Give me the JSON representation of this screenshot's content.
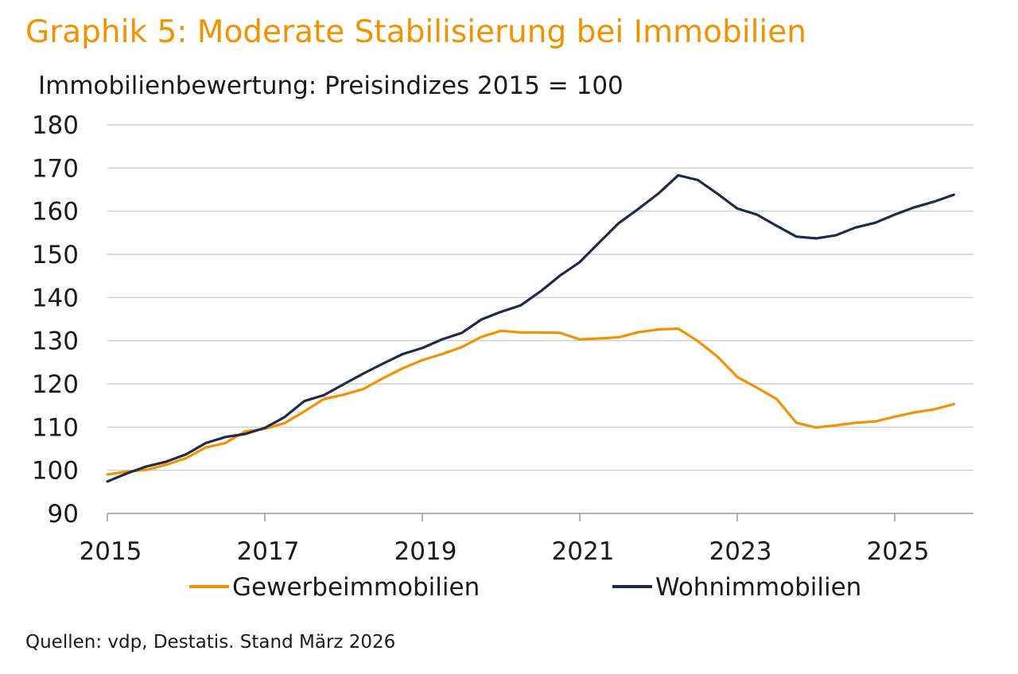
{
  "title": "Graphik 5: Moderate Stabilisierung bei Immobilien",
  "source": "Quellen: vdp, Destatis. Stand März 2026",
  "chart_data": {
    "type": "line",
    "title": "Graphik 5: Moderate Stabilisierung bei Immobilien",
    "ylabel": "Immobilienbewertung: Preisindizes 2015 = 100",
    "xlabel": "",
    "xlim": [
      2015,
      2026
    ],
    "ylim": [
      90,
      180
    ],
    "y_ticks": [
      90,
      100,
      110,
      120,
      130,
      140,
      150,
      160,
      170,
      180
    ],
    "x_ticks": [
      2015,
      2017,
      2019,
      2021,
      2023,
      2025
    ],
    "x_tick_labels": [
      "2015",
      "2017",
      "2019",
      "2021",
      "2023",
      "2025"
    ],
    "grid": "horizontal",
    "legend_position": "bottom",
    "x": [
      2015.0,
      2015.25,
      2015.5,
      2015.75,
      2016.0,
      2016.25,
      2016.5,
      2016.75,
      2017.0,
      2017.25,
      2017.5,
      2017.75,
      2018.0,
      2018.25,
      2018.5,
      2018.75,
      2019.0,
      2019.25,
      2019.5,
      2019.75,
      2020.0,
      2020.25,
      2020.5,
      2020.75,
      2021.0,
      2021.25,
      2021.5,
      2021.75,
      2022.0,
      2022.25,
      2022.5,
      2022.75,
      2023.0,
      2023.25,
      2023.5,
      2023.75,
      2024.0,
      2024.25,
      2024.5,
      2024.75,
      2025.0,
      2025.25,
      2025.5,
      2025.75
    ],
    "series": [
      {
        "name": "Gewerbeimmobilien",
        "color": "#f39200",
        "values": [
          99.0,
          99.7,
          100.1,
          101.3,
          102.8,
          105.3,
          106.3,
          109.0,
          109.6,
          110.9,
          113.6,
          116.5,
          117.5,
          118.8,
          121.3,
          123.6,
          125.5,
          126.9,
          128.5,
          130.9,
          132.3,
          131.9,
          131.9,
          131.8,
          130.3,
          130.5,
          130.8,
          132.0,
          132.6,
          132.8,
          129.9,
          126.3,
          121.6,
          119.1,
          116.5,
          111.0,
          109.9,
          110.4,
          111.0,
          111.3,
          112.4,
          113.4,
          114.1,
          115.3
        ]
      },
      {
        "name": "Wohnimmobilien",
        "color": "#1f2a4d",
        "values": [
          97.4,
          99.3,
          100.9,
          102.0,
          103.7,
          106.3,
          107.7,
          108.4,
          109.8,
          112.3,
          116.0,
          117.4,
          119.9,
          122.4,
          124.7,
          126.9,
          128.3,
          130.3,
          131.8,
          134.9,
          136.7,
          138.2,
          141.4,
          145.1,
          148.2,
          152.8,
          157.3,
          160.6,
          164.1,
          168.3,
          167.2,
          164.0,
          160.6,
          159.2,
          156.6,
          154.1,
          153.7,
          154.4,
          156.2,
          157.3,
          159.2,
          160.9,
          162.2,
          163.8
        ]
      }
    ]
  }
}
